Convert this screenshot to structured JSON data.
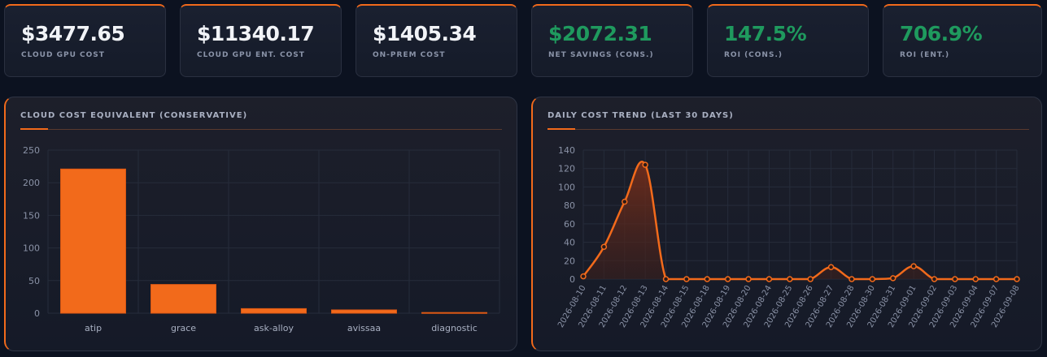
{
  "kpis": [
    {
      "value": "$3477.65",
      "label": "CLOUD GPU COST",
      "color": "#f1f3f7"
    },
    {
      "value": "$11340.17",
      "label": "CLOUD GPU ENT. COST",
      "color": "#f1f3f7"
    },
    {
      "value": "$1405.34",
      "label": "ON-PREM COST",
      "color": "#f1f3f7"
    },
    {
      "value": "$2072.31",
      "label": "NET SAVINGS (CONS.)",
      "color": "#1f9a5e"
    },
    {
      "value": "147.5%",
      "label": "ROI (CONS.)",
      "color": "#1f9a5e"
    },
    {
      "value": "706.9%",
      "label": "ROI (ENT.)",
      "color": "#1f9a5e"
    }
  ],
  "accent_color": "#f26a1b",
  "chart_data": [
    {
      "type": "bar",
      "title": "CLOUD COST EQUIVALENT (CONSERVATIVE)",
      "categories": [
        "atip",
        "grace",
        "ask-alloy",
        "avissaa",
        "diagnostic"
      ],
      "values": [
        221,
        44,
        7,
        5,
        1
      ],
      "ylim": [
        0,
        250
      ],
      "yticks": [
        0,
        50,
        100,
        150,
        200,
        250
      ],
      "grid": true,
      "legend": "none"
    },
    {
      "type": "area",
      "title": "DAILY COST TREND (LAST 30 DAYS)",
      "x": [
        "2026-08-10",
        "2026-08-11",
        "2026-08-12",
        "2026-08-13",
        "2026-08-14",
        "2026-08-15",
        "2026-08-18",
        "2026-08-19",
        "2026-08-20",
        "2026-08-24",
        "2026-08-25",
        "2026-08-26",
        "2026-08-27",
        "2026-08-28",
        "2026-08-30",
        "2026-08-31",
        "2026-09-01",
        "2026-09-02",
        "2026-09-03",
        "2026-09-04",
        "2026-09-07",
        "2026-09-08"
      ],
      "values": [
        3,
        35,
        84,
        124,
        0,
        0,
        0,
        0,
        0,
        0,
        0,
        0,
        13,
        0,
        0,
        1,
        14,
        0,
        0,
        0,
        0,
        0
      ],
      "ylim": [
        0,
        140
      ],
      "yticks": [
        0,
        20,
        40,
        60,
        80,
        100,
        120,
        140
      ],
      "grid": true,
      "legend": "none"
    }
  ]
}
